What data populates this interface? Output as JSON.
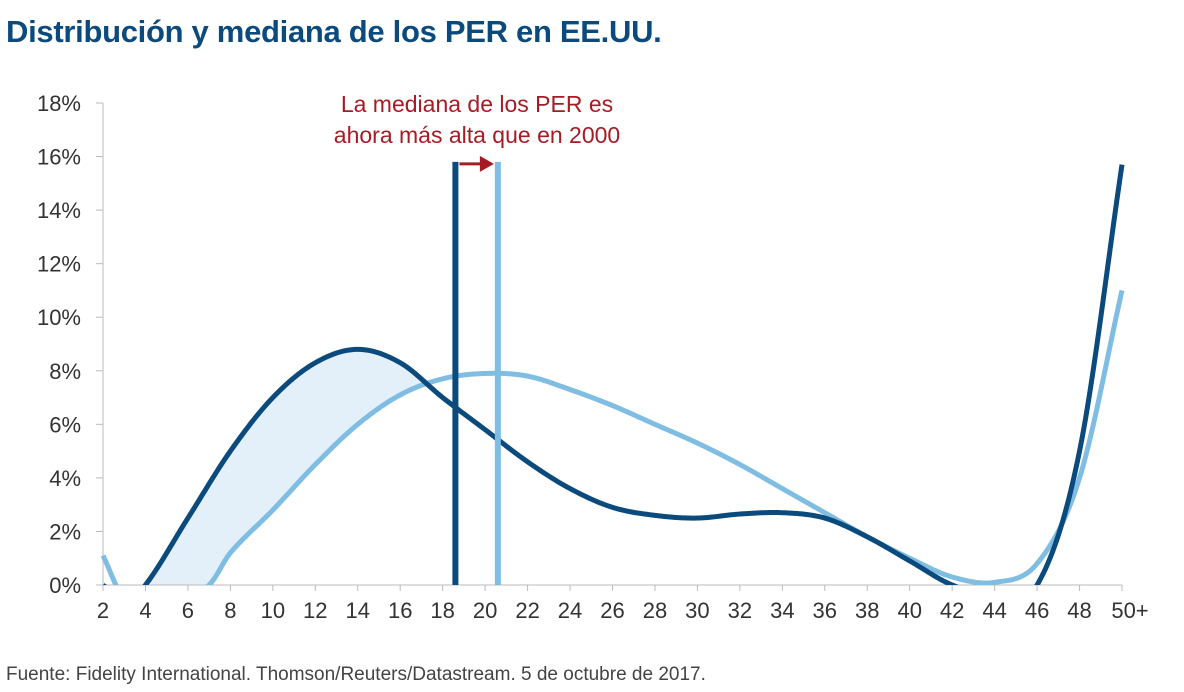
{
  "chart_data": {
    "type": "line",
    "title": "Distribución y mediana de los PER en EE.UU.",
    "source": "Fuente: Fidelity International. Thomson/Reuters/Datastream. 5 de octubre de 2017.",
    "xlabel": "",
    "ylabel": "",
    "x_ticks": [
      "2",
      "4",
      "6",
      "8",
      "10",
      "12",
      "14",
      "16",
      "18",
      "20",
      "22",
      "24",
      "26",
      "28",
      "30",
      "32",
      "34",
      "36",
      "38",
      "40",
      "42",
      "44",
      "46",
      "48",
      "50+"
    ],
    "y_ticks": [
      "0%",
      "2%",
      "4%",
      "6%",
      "8%",
      "10%",
      "12%",
      "14%",
      "16%",
      "18%"
    ],
    "xlim": [
      2,
      50
    ],
    "ylim": [
      0,
      18
    ],
    "grid": false,
    "annotation": [
      "La mediana de los PER es",
      "ahora más alta que en 2000"
    ],
    "series": [
      {
        "name": "dark",
        "color": "#0b4a7d",
        "points": [
          [
            2,
            0
          ],
          [
            3,
            -0.6
          ],
          [
            4,
            0
          ],
          [
            6,
            2.5
          ],
          [
            8,
            5
          ],
          [
            10,
            7
          ],
          [
            12,
            8.3
          ],
          [
            14,
            8.8
          ],
          [
            16,
            8.3
          ],
          [
            18,
            7.0
          ],
          [
            20,
            5.8
          ],
          [
            22,
            4.6
          ],
          [
            24,
            3.6
          ],
          [
            26,
            2.9
          ],
          [
            28,
            2.6
          ],
          [
            30,
            2.5
          ],
          [
            32,
            2.65
          ],
          [
            34,
            2.7
          ],
          [
            36,
            2.5
          ],
          [
            38,
            1.8
          ],
          [
            40,
            0.9
          ],
          [
            42,
            0
          ],
          [
            44,
            -0.4
          ],
          [
            46,
            0
          ],
          [
            48,
            5
          ],
          [
            50,
            15.7
          ]
        ],
        "median": 18.6
      },
      {
        "name": "light",
        "color": "#7fbde3",
        "points": [
          [
            2,
            1.1
          ],
          [
            3,
            -0.5
          ],
          [
            5,
            -1
          ],
          [
            7,
            0
          ],
          [
            8,
            1.2
          ],
          [
            10,
            2.8
          ],
          [
            12,
            4.5
          ],
          [
            14,
            6
          ],
          [
            16,
            7.1
          ],
          [
            18,
            7.7
          ],
          [
            20,
            7.9
          ],
          [
            22,
            7.8
          ],
          [
            24,
            7.3
          ],
          [
            26,
            6.7
          ],
          [
            28,
            6.0
          ],
          [
            30,
            5.3
          ],
          [
            32,
            4.5
          ],
          [
            34,
            3.6
          ],
          [
            36,
            2.7
          ],
          [
            38,
            1.8
          ],
          [
            40,
            1.0
          ],
          [
            42,
            0.3
          ],
          [
            44,
            0.1
          ],
          [
            46,
            0.8
          ],
          [
            48,
            4
          ],
          [
            50,
            11
          ]
        ],
        "median": 20.6
      }
    ],
    "median_line_top": 15.8,
    "fill_color": "#e3f0fa",
    "annotation_color": "#a51c24"
  }
}
